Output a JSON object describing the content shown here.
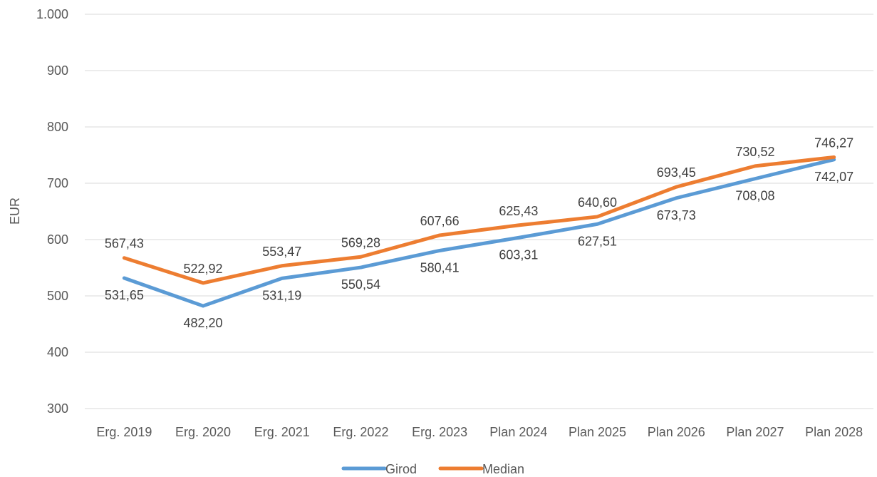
{
  "chart_data": {
    "type": "line",
    "categories": [
      "Erg. 2019",
      "Erg. 2020",
      "Erg. 2021",
      "Erg. 2022",
      "Erg. 2023",
      "Plan 2024",
      "Plan 2025",
      "Plan 2026",
      "Plan 2027",
      "Plan 2028"
    ],
    "ylabel": "EUR",
    "xlabel": "",
    "ylim": [
      300,
      1000
    ],
    "yticks": [
      300,
      400,
      500,
      600,
      700,
      800,
      900,
      1000
    ],
    "ytick_labels": [
      "300",
      "400",
      "500",
      "600",
      "700",
      "800",
      "900",
      "1.000"
    ],
    "grid": true,
    "legend_position": "bottom",
    "series": [
      {
        "name": "Girod",
        "color": "#5B9BD5",
        "values": [
          531.65,
          482.2,
          531.19,
          550.54,
          580.41,
          603.31,
          627.51,
          673.73,
          708.08,
          742.07
        ],
        "labels": [
          "531,65",
          "482,20",
          "531,19",
          "550,54",
          "580,41",
          "603,31",
          "627,51",
          "673,73",
          "708,08",
          "742,07"
        ]
      },
      {
        "name": "Median",
        "color": "#ED7D31",
        "values": [
          567.43,
          522.92,
          553.47,
          569.28,
          607.66,
          625.43,
          640.6,
          693.45,
          730.52,
          746.27
        ],
        "labels": [
          "567,43",
          "522,92",
          "553,47",
          "569,28",
          "607,66",
          "625,43",
          "640,60",
          "693,45",
          "730,52",
          "746,27"
        ]
      }
    ]
  }
}
